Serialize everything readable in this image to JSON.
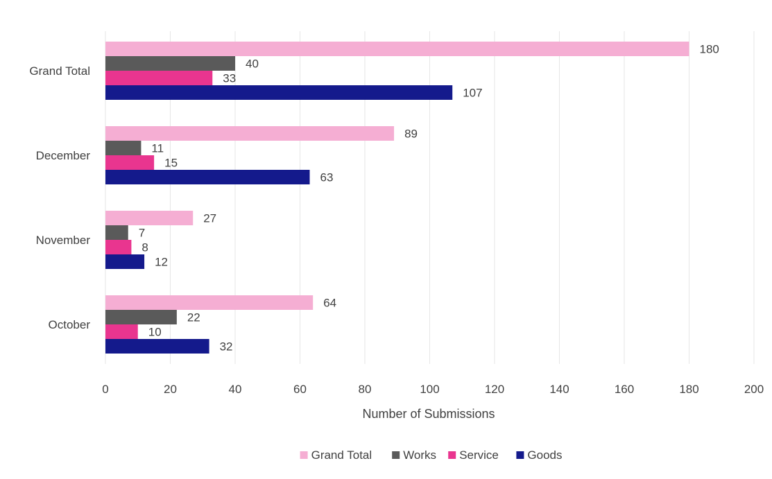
{
  "chart_data": {
    "type": "bar",
    "orientation": "horizontal",
    "categories": [
      "Grand Total",
      "December",
      "November",
      "October"
    ],
    "series": [
      {
        "name": "Grand Total",
        "color": "#f5aed3",
        "values": [
          180,
          89,
          27,
          64
        ]
      },
      {
        "name": "Works",
        "color": "#5a5a5a",
        "values": [
          40,
          11,
          7,
          22
        ]
      },
      {
        "name": "Service",
        "color": "#e9358f",
        "values": [
          33,
          15,
          8,
          10
        ]
      },
      {
        "name": "Goods",
        "color": "#141a8c",
        "values": [
          107,
          63,
          12,
          32
        ]
      }
    ],
    "xlabel": "Number of Submissions",
    "ylabel": "",
    "xlim": [
      0,
      200
    ],
    "x_ticks": [
      "0",
      "20",
      "40",
      "60",
      "80",
      "100",
      "120",
      "140",
      "160",
      "180",
      "200"
    ],
    "data_labels": true,
    "grid": "vertical",
    "legend": "bottom"
  }
}
